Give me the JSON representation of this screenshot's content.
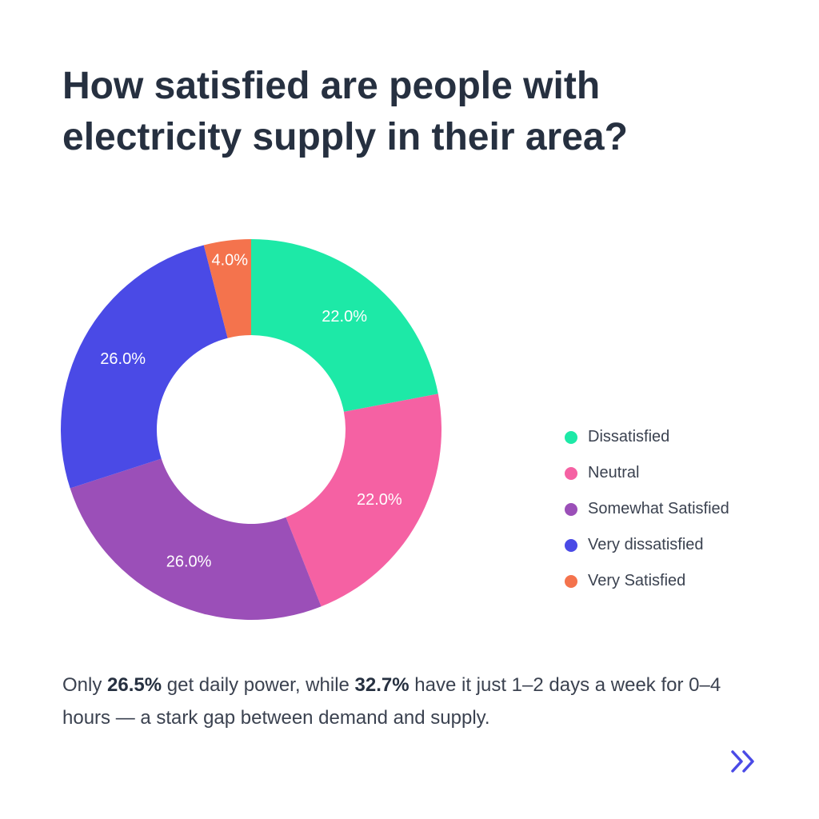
{
  "header": {
    "title_line1": "How satisfied are people with",
    "title_line2": "electricity supply in their area?"
  },
  "chart_data": {
    "type": "pie",
    "donut": true,
    "labels": [
      "Dissatisfied",
      "Neutral",
      "Somewhat Satisfied",
      "Very dissatisfied",
      "Very Satisfied"
    ],
    "values": [
      22.0,
      22.0,
      26.0,
      26.0,
      4.0
    ],
    "value_labels": [
      "22.0%",
      "22.0%",
      "26.0%",
      "26.0%",
      "4.0%"
    ],
    "colors": [
      "#1de9a7",
      "#f561a3",
      "#9b4fb8",
      "#4a4ae6",
      "#f4734d"
    ],
    "legend_position": "right"
  },
  "note": {
    "part1": "Only ",
    "bold1": "26.5%",
    "part2": " get daily power, while ",
    "bold2": "32.7%",
    "part3": " have it just 1–2 days a week for 0–4 hours — a stark gap between demand and supply."
  },
  "navigation": {
    "next_icon": "double-chevron-right-icon",
    "icon_color": "#4a4ae6"
  }
}
